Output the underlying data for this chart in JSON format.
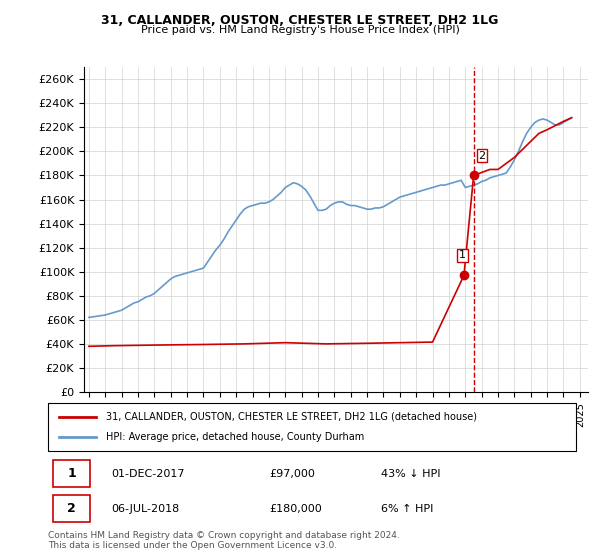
{
  "title": "31, CALLANDER, OUSTON, CHESTER LE STREET, DH2 1LG",
  "subtitle": "Price paid vs. HM Land Registry's House Price Index (HPI)",
  "ylabel_ticks": [
    "£0",
    "£20K",
    "£40K",
    "£60K",
    "£80K",
    "£100K",
    "£120K",
    "£140K",
    "£160K",
    "£180K",
    "£200K",
    "£220K",
    "£240K",
    "£260K"
  ],
  "ytick_values": [
    0,
    20000,
    40000,
    60000,
    80000,
    100000,
    120000,
    140000,
    160000,
    180000,
    200000,
    220000,
    240000,
    260000
  ],
  "ylim": [
    0,
    270000
  ],
  "xlim_start": 1995.0,
  "xlim_end": 2025.5,
  "legend_label_red": "31, CALLANDER, OUSTON, CHESTER LE STREET, DH2 1LG (detached house)",
  "legend_label_blue": "HPI: Average price, detached house, County Durham",
  "point1_label": "1",
  "point1_date": "01-DEC-2017",
  "point1_price": "£97,000",
  "point1_change": "43% ↓ HPI",
  "point1_x": 2017.92,
  "point1_y": 97000,
  "point2_label": "2",
  "point2_date": "06-JUL-2018",
  "point2_price": "£180,000",
  "point2_change": "6% ↑ HPI",
  "point2_x": 2018.51,
  "point2_y": 180000,
  "vline_x": 2018.51,
  "footer": "Contains HM Land Registry data © Crown copyright and database right 2024.\nThis data is licensed under the Open Government Licence v3.0.",
  "red_color": "#cc0000",
  "blue_color": "#6699cc",
  "vline_color": "#cc0000",
  "hpi_data_x": [
    1995.0,
    1995.25,
    1995.5,
    1995.75,
    1996.0,
    1996.25,
    1996.5,
    1996.75,
    1997.0,
    1997.25,
    1997.5,
    1997.75,
    1998.0,
    1998.25,
    1998.5,
    1998.75,
    1999.0,
    1999.25,
    1999.5,
    1999.75,
    2000.0,
    2000.25,
    2000.5,
    2000.75,
    2001.0,
    2001.25,
    2001.5,
    2001.75,
    2002.0,
    2002.25,
    2002.5,
    2002.75,
    2003.0,
    2003.25,
    2003.5,
    2003.75,
    2004.0,
    2004.25,
    2004.5,
    2004.75,
    2005.0,
    2005.25,
    2005.5,
    2005.75,
    2006.0,
    2006.25,
    2006.5,
    2006.75,
    2007.0,
    2007.25,
    2007.5,
    2007.75,
    2008.0,
    2008.25,
    2008.5,
    2008.75,
    2009.0,
    2009.25,
    2009.5,
    2009.75,
    2010.0,
    2010.25,
    2010.5,
    2010.75,
    2011.0,
    2011.25,
    2011.5,
    2011.75,
    2012.0,
    2012.25,
    2012.5,
    2012.75,
    2013.0,
    2013.25,
    2013.5,
    2013.75,
    2014.0,
    2014.25,
    2014.5,
    2014.75,
    2015.0,
    2015.25,
    2015.5,
    2015.75,
    2016.0,
    2016.25,
    2016.5,
    2016.75,
    2017.0,
    2017.25,
    2017.5,
    2017.75,
    2018.0,
    2018.25,
    2018.5,
    2018.75,
    2019.0,
    2019.25,
    2019.5,
    2019.75,
    2020.0,
    2020.25,
    2020.5,
    2020.75,
    2021.0,
    2021.25,
    2021.5,
    2021.75,
    2022.0,
    2022.25,
    2022.5,
    2022.75,
    2023.0,
    2023.25,
    2023.5,
    2023.75,
    2024.0,
    2024.25,
    2024.5
  ],
  "hpi_data_y": [
    62000,
    62500,
    63000,
    63500,
    64000,
    65000,
    66000,
    67000,
    68000,
    70000,
    72000,
    74000,
    75000,
    77000,
    79000,
    80000,
    82000,
    85000,
    88000,
    91000,
    94000,
    96000,
    97000,
    98000,
    99000,
    100000,
    101000,
    102000,
    103000,
    108000,
    113000,
    118000,
    122000,
    127000,
    133000,
    138000,
    143000,
    148000,
    152000,
    154000,
    155000,
    156000,
    157000,
    157000,
    158000,
    160000,
    163000,
    166000,
    170000,
    172000,
    174000,
    173000,
    171000,
    168000,
    163000,
    157000,
    151000,
    151000,
    152000,
    155000,
    157000,
    158000,
    158000,
    156000,
    155000,
    155000,
    154000,
    153000,
    152000,
    152000,
    153000,
    153000,
    154000,
    156000,
    158000,
    160000,
    162000,
    163000,
    164000,
    165000,
    166000,
    167000,
    168000,
    169000,
    170000,
    171000,
    172000,
    172000,
    173000,
    174000,
    175000,
    176000,
    170000,
    171000,
    172000,
    173000,
    175000,
    176000,
    178000,
    179000,
    180000,
    181000,
    182000,
    187000,
    193000,
    200000,
    208000,
    215000,
    220000,
    224000,
    226000,
    227000,
    226000,
    224000,
    222000,
    222000,
    224000,
    226000,
    228000
  ],
  "price_paid_x": [
    1995.0,
    1996.5,
    1999.0,
    2002.0,
    2004.5,
    2007.0,
    2009.5,
    2012.0,
    2014.0,
    2016.0,
    2017.92,
    2018.51,
    2019.5,
    2020.0,
    2021.0,
    2022.5,
    2023.0,
    2024.0,
    2024.5
  ],
  "price_paid_y": [
    38000,
    38500,
    39000,
    39500,
    40000,
    41000,
    40000,
    40500,
    41000,
    41500,
    97000,
    180000,
    185000,
    185000,
    195000,
    215000,
    218000,
    225000,
    228000
  ]
}
